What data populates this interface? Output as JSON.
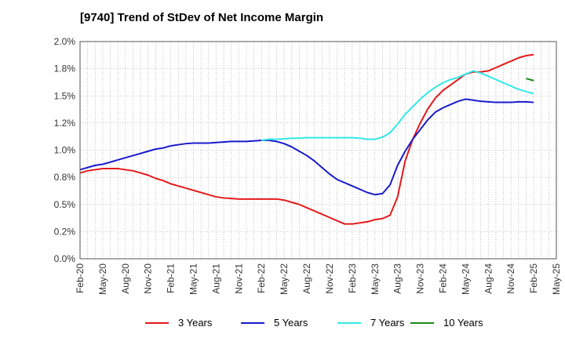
{
  "title": "[9740]  Trend of StDev of Net Income Margin",
  "chart_data": {
    "type": "line",
    "title": "[9740]  Trend of StDev of Net Income Margin",
    "xlabel": "",
    "ylabel": "",
    "ylim": [
      0,
      2.0
    ],
    "xlim": [
      "Feb-20",
      "May-25"
    ],
    "y_ticks": [
      "0.0%",
      "0.2%",
      "0.5%",
      "0.8%",
      "1.0%",
      "1.2%",
      "1.5%",
      "1.8%",
      "2.0%"
    ],
    "x_ticks": [
      "Feb-20",
      "May-20",
      "Aug-20",
      "Nov-20",
      "Feb-21",
      "May-21",
      "Aug-21",
      "Nov-21",
      "Feb-22",
      "May-22",
      "Aug-22",
      "Nov-22",
      "Feb-23",
      "May-23",
      "Aug-23",
      "Nov-23",
      "Feb-24",
      "May-24",
      "Aug-24",
      "Nov-24",
      "Feb-25",
      "May-25"
    ],
    "grid": true,
    "legend_position": "bottom",
    "series": [
      {
        "name": "3 Years",
        "color": "#e31a1c",
        "points": [
          [
            "Feb-20",
            0.79
          ],
          [
            "Mar-20",
            0.81
          ],
          [
            "Apr-20",
            0.82
          ],
          [
            "May-20",
            0.83
          ],
          [
            "Jun-20",
            0.83
          ],
          [
            "Jul-20",
            0.83
          ],
          [
            "Aug-20",
            0.82
          ],
          [
            "Sep-20",
            0.81
          ],
          [
            "Oct-20",
            0.79
          ],
          [
            "Nov-20",
            0.77
          ],
          [
            "Dec-20",
            0.74
          ],
          [
            "Jan-21",
            0.72
          ],
          [
            "Feb-21",
            0.69
          ],
          [
            "Mar-21",
            0.67
          ],
          [
            "Apr-21",
            0.65
          ],
          [
            "May-21",
            0.63
          ],
          [
            "Jun-21",
            0.61
          ],
          [
            "Jul-21",
            0.59
          ],
          [
            "Aug-21",
            0.57
          ],
          [
            "Sep-21",
            0.56
          ],
          [
            "Oct-21",
            0.555
          ],
          [
            "Nov-21",
            0.55
          ],
          [
            "Dec-21",
            0.55
          ],
          [
            "Jan-22",
            0.55
          ],
          [
            "Feb-22",
            0.55
          ],
          [
            "Mar-22",
            0.55
          ],
          [
            "Apr-22",
            0.55
          ],
          [
            "May-22",
            0.54
          ],
          [
            "Jun-22",
            0.52
          ],
          [
            "Jul-22",
            0.5
          ],
          [
            "Aug-22",
            0.47
          ],
          [
            "Sep-22",
            0.44
          ],
          [
            "Oct-22",
            0.41
          ],
          [
            "Nov-22",
            0.38
          ],
          [
            "Dec-22",
            0.35
          ],
          [
            "Jan-23",
            0.32
          ],
          [
            "Feb-23",
            0.32
          ],
          [
            "Mar-23",
            0.33
          ],
          [
            "Apr-23",
            0.34
          ],
          [
            "May-23",
            0.36
          ],
          [
            "Jun-23",
            0.37
          ],
          [
            "Jul-23",
            0.4
          ],
          [
            "Aug-23",
            0.57
          ],
          [
            "Sep-23",
            0.9
          ],
          [
            "Oct-23",
            1.1
          ],
          [
            "Nov-23",
            1.25
          ],
          [
            "Dec-23",
            1.38
          ],
          [
            "Jan-24",
            1.48
          ],
          [
            "Feb-24",
            1.55
          ],
          [
            "Mar-24",
            1.6
          ],
          [
            "Apr-24",
            1.65
          ],
          [
            "May-24",
            1.7
          ],
          [
            "Jun-24",
            1.72
          ],
          [
            "Jul-24",
            1.72
          ],
          [
            "Aug-24",
            1.73
          ],
          [
            "Sep-24",
            1.76
          ],
          [
            "Oct-24",
            1.79
          ],
          [
            "Nov-24",
            1.82
          ],
          [
            "Dec-24",
            1.85
          ],
          [
            "Jan-25",
            1.87
          ],
          [
            "Feb-25",
            1.88
          ]
        ]
      },
      {
        "name": "5 Years",
        "color": "#1a1acc",
        "points": [
          [
            "Feb-20",
            0.82
          ],
          [
            "Mar-20",
            0.84
          ],
          [
            "Apr-20",
            0.86
          ],
          [
            "May-20",
            0.87
          ],
          [
            "Jun-20",
            0.89
          ],
          [
            "Jul-20",
            0.91
          ],
          [
            "Aug-20",
            0.93
          ],
          [
            "Sep-20",
            0.95
          ],
          [
            "Oct-20",
            0.97
          ],
          [
            "Nov-20",
            0.99
          ],
          [
            "Dec-20",
            1.01
          ],
          [
            "Jan-21",
            1.02
          ],
          [
            "Feb-21",
            1.04
          ],
          [
            "Mar-21",
            1.05
          ],
          [
            "Apr-21",
            1.06
          ],
          [
            "May-21",
            1.065
          ],
          [
            "Jun-21",
            1.065
          ],
          [
            "Jul-21",
            1.065
          ],
          [
            "Aug-21",
            1.07
          ],
          [
            "Sep-21",
            1.075
          ],
          [
            "Oct-21",
            1.08
          ],
          [
            "Nov-21",
            1.08
          ],
          [
            "Dec-21",
            1.08
          ],
          [
            "Jan-22",
            1.085
          ],
          [
            "Feb-22",
            1.09
          ],
          [
            "Mar-22",
            1.09
          ],
          [
            "Apr-22",
            1.08
          ],
          [
            "May-22",
            1.06
          ],
          [
            "Jun-22",
            1.03
          ],
          [
            "Jul-22",
            0.99
          ],
          [
            "Aug-22",
            0.95
          ],
          [
            "Sep-22",
            0.9
          ],
          [
            "Oct-22",
            0.84
          ],
          [
            "Nov-22",
            0.78
          ],
          [
            "Dec-22",
            0.73
          ],
          [
            "Jan-23",
            0.7
          ],
          [
            "Feb-23",
            0.67
          ],
          [
            "Mar-23",
            0.64
          ],
          [
            "Apr-23",
            0.61
          ],
          [
            "May-23",
            0.59
          ],
          [
            "Jun-23",
            0.6
          ],
          [
            "Jul-23",
            0.68
          ],
          [
            "Aug-23",
            0.86
          ],
          [
            "Sep-23",
            0.99
          ],
          [
            "Oct-23",
            1.1
          ],
          [
            "Nov-23",
            1.19
          ],
          [
            "Dec-23",
            1.28
          ],
          [
            "Jan-24",
            1.35
          ],
          [
            "Feb-24",
            1.39
          ],
          [
            "Mar-24",
            1.42
          ],
          [
            "Apr-24",
            1.45
          ],
          [
            "May-24",
            1.47
          ],
          [
            "Jun-24",
            1.46
          ],
          [
            "Jul-24",
            1.45
          ],
          [
            "Aug-24",
            1.445
          ],
          [
            "Sep-24",
            1.44
          ],
          [
            "Oct-24",
            1.44
          ],
          [
            "Nov-24",
            1.44
          ],
          [
            "Dec-24",
            1.445
          ],
          [
            "Jan-25",
            1.445
          ],
          [
            "Feb-25",
            1.44
          ]
        ]
      },
      {
        "name": "7 Years",
        "color": "#33e8e8",
        "points": [
          [
            "Feb-22",
            1.09
          ],
          [
            "Mar-22",
            1.1
          ],
          [
            "Apr-22",
            1.1
          ],
          [
            "May-22",
            1.105
          ],
          [
            "Jun-22",
            1.11
          ],
          [
            "Jul-22",
            1.11
          ],
          [
            "Aug-22",
            1.115
          ],
          [
            "Sep-22",
            1.115
          ],
          [
            "Oct-22",
            1.115
          ],
          [
            "Nov-22",
            1.115
          ],
          [
            "Dec-22",
            1.115
          ],
          [
            "Jan-23",
            1.115
          ],
          [
            "Feb-23",
            1.115
          ],
          [
            "Mar-23",
            1.11
          ],
          [
            "Apr-23",
            1.1
          ],
          [
            "May-23",
            1.1
          ],
          [
            "Jun-23",
            1.12
          ],
          [
            "Jul-23",
            1.16
          ],
          [
            "Aug-23",
            1.24
          ],
          [
            "Sep-23",
            1.33
          ],
          [
            "Oct-23",
            1.4
          ],
          [
            "Nov-23",
            1.47
          ],
          [
            "Dec-23",
            1.53
          ],
          [
            "Jan-24",
            1.58
          ],
          [
            "Feb-24",
            1.62
          ],
          [
            "Mar-24",
            1.65
          ],
          [
            "Apr-24",
            1.67
          ],
          [
            "May-24",
            1.7
          ],
          [
            "Jun-24",
            1.73
          ],
          [
            "Jul-24",
            1.71
          ],
          [
            "Aug-24",
            1.68
          ],
          [
            "Sep-24",
            1.65
          ],
          [
            "Oct-24",
            1.62
          ],
          [
            "Nov-24",
            1.59
          ],
          [
            "Dec-24",
            1.56
          ],
          [
            "Jan-25",
            1.54
          ],
          [
            "Feb-25",
            1.52
          ]
        ]
      },
      {
        "name": "10 Years",
        "color": "#1a8a1a",
        "points": [
          [
            "Jan-25",
            1.66
          ],
          [
            "Feb-25",
            1.64
          ]
        ]
      }
    ]
  }
}
